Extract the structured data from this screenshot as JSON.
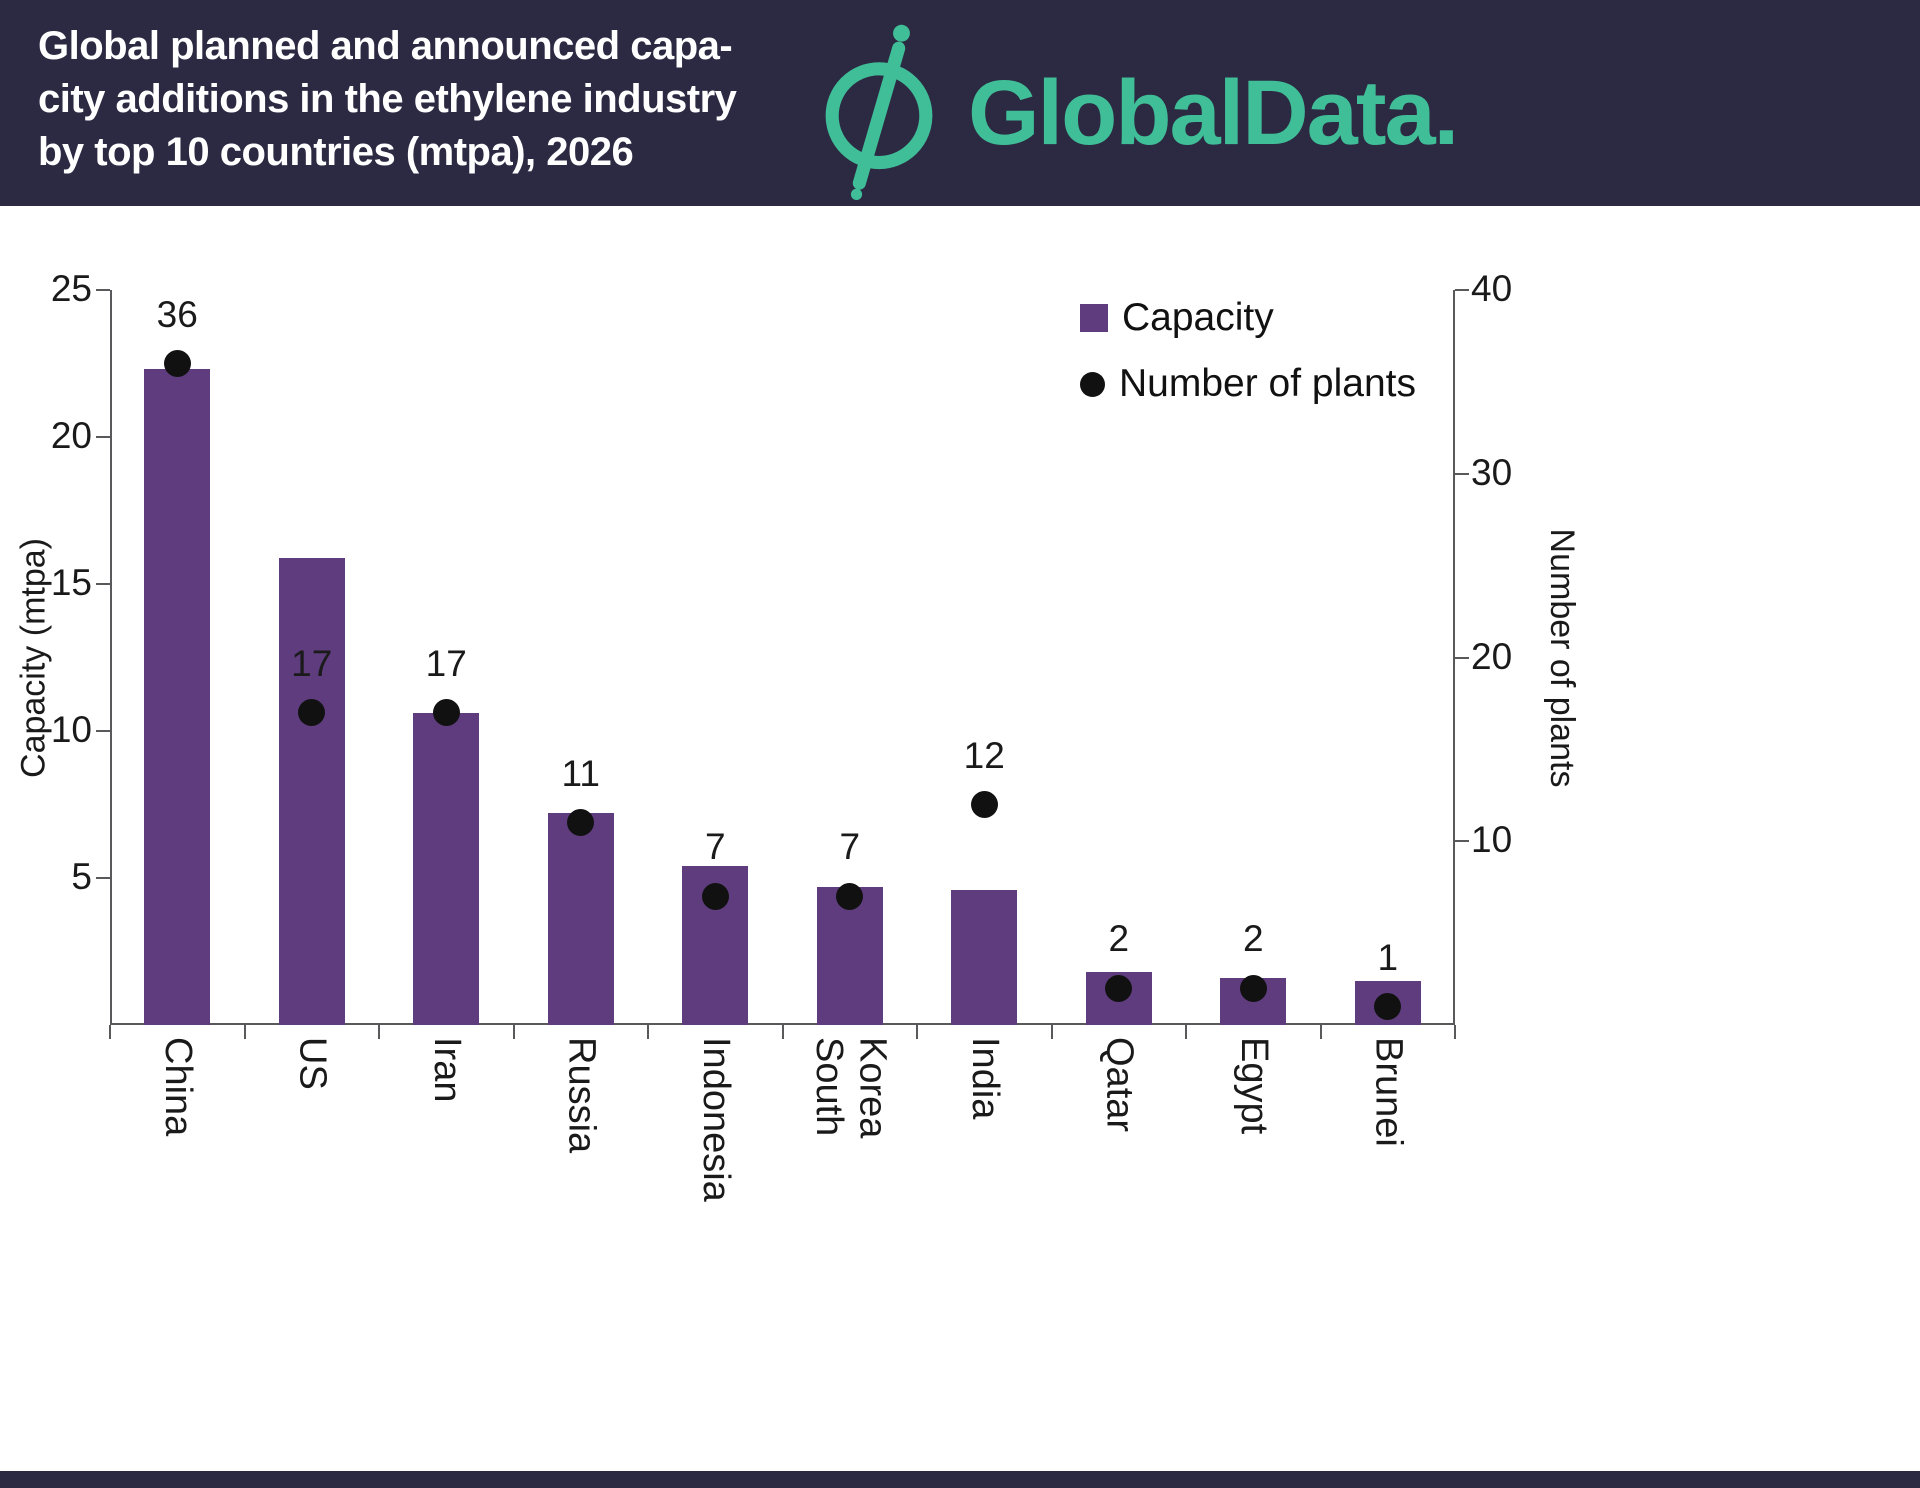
{
  "header": {
    "title": "Global planned and announced capa-\ncity additions in the ethylene industry\nby top 10 countries (mtpa), 2026",
    "brand": "GlobalData."
  },
  "legend": {
    "capacity": "Capacity",
    "plants": "Number of plants"
  },
  "chart_data": {
    "type": "bar",
    "categories": [
      "China",
      "US",
      "Iran",
      "Russia",
      "Indonesia",
      "South\nKorea",
      "India",
      "Qatar",
      "Egypt",
      "Brunei"
    ],
    "series": [
      {
        "name": "Capacity",
        "type": "bar",
        "axis": "left",
        "unit": "mtpa",
        "values": [
          22.3,
          15.9,
          10.6,
          7.2,
          5.4,
          4.7,
          4.6,
          1.8,
          1.6,
          1.5
        ]
      },
      {
        "name": "Number of plants",
        "type": "scatter",
        "axis": "right",
        "values": [
          36,
          17,
          17,
          11,
          7,
          7,
          12,
          2,
          2,
          1
        ]
      }
    ],
    "point_labels": [
      36,
      17,
      17,
      11,
      7,
      7,
      12,
      2,
      2,
      1
    ],
    "ylabel_left": "Capacity (mtpa)",
    "ylabel_right": "Number of plants",
    "ylim_left": [
      0,
      25
    ],
    "ylim_right": [
      0,
      40
    ],
    "yticks_left": [
      5,
      10,
      15,
      20,
      25
    ],
    "yticks_right": [
      10,
      20,
      30,
      40
    ],
    "grid": false,
    "legend_position": "top-right",
    "colors": {
      "bar": "#5e3c7d",
      "dot": "#111111"
    }
  },
  "colors": {
    "header_bg": "#2c2942",
    "brand_teal": "#3fbe98",
    "bar_purple": "#5e3c7d",
    "footer_bg": "#2c2942"
  }
}
